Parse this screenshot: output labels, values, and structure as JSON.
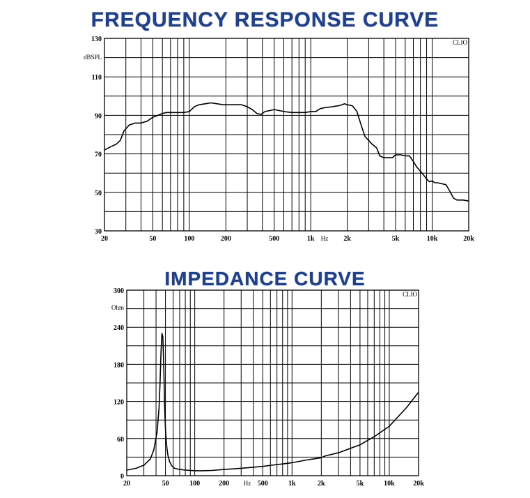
{
  "chart_data": [
    {
      "type": "line",
      "title": "FREQUENCY RESPONSE CURVE",
      "brand": "CLIO",
      "xlabel": "Hz",
      "ylabel": "dBSPL",
      "xscale": "log",
      "xlim": [
        20,
        20000
      ],
      "ylim": [
        30,
        130
      ],
      "x_tick_values": [
        20,
        50,
        100,
        200,
        500,
        1000,
        2000,
        5000,
        10000,
        20000
      ],
      "x_tick_labels": [
        "20",
        "50",
        "100",
        "200",
        "500",
        "1k",
        "2k",
        "5k",
        "10k",
        "20k"
      ],
      "y_tick_values": [
        30,
        50,
        70,
        90,
        110,
        130
      ],
      "y_tick_labels": [
        "30",
        "50",
        "70",
        "90",
        "110",
        "130"
      ],
      "grid": true,
      "series": [
        {
          "x": [
            20,
            23,
            25,
            27,
            29,
            32,
            36,
            40,
            45,
            50,
            55,
            60,
            65,
            70,
            80,
            90,
            100,
            110,
            120,
            135,
            150,
            170,
            190,
            210,
            240,
            270,
            300,
            330,
            360,
            390,
            420,
            460,
            500,
            550,
            600,
            700,
            800,
            900,
            1000,
            1100,
            1200,
            1300,
            1500,
            1700,
            1800,
            1900,
            2000,
            2200,
            2400,
            2600,
            2800,
            3000,
            3200,
            3500,
            3700,
            4000,
            4300,
            4700,
            5000,
            5500,
            6000,
            6500,
            7000,
            7500,
            8000,
            8500,
            9000,
            9500,
            10000,
            10500,
            11000,
            12000,
            13000,
            14000,
            15000,
            16000,
            18000,
            20000
          ],
          "y": [
            72,
            74,
            75,
            77,
            82,
            85,
            86,
            86,
            87,
            89,
            90,
            91,
            91.5,
            91.5,
            91.5,
            91.5,
            92,
            94.5,
            95.5,
            96,
            96.5,
            96,
            95.5,
            95.5,
            95.5,
            95.5,
            94.5,
            93,
            91,
            90.5,
            92,
            92.5,
            93,
            92.5,
            92,
            91.5,
            91.5,
            91.5,
            92,
            92,
            93.5,
            94,
            94.5,
            95,
            95.5,
            96,
            95.5,
            95,
            92,
            85,
            79,
            77,
            75,
            73,
            69,
            68,
            68,
            68,
            69.5,
            69.5,
            69,
            69,
            66,
            63,
            61,
            59,
            57,
            55.5,
            56,
            55,
            55,
            54.5,
            54,
            50.5,
            47,
            46,
            46,
            45.5
          ]
        }
      ]
    },
    {
      "type": "line",
      "title": "IMPEDANCE CURVE",
      "brand": "CLIO",
      "xlabel": "Hz",
      "ylabel": "Ohm",
      "xscale": "log",
      "xlim": [
        20,
        20000
      ],
      "ylim": [
        0,
        300
      ],
      "x_tick_values": [
        20,
        50,
        100,
        200,
        500,
        1000,
        2000,
        5000,
        10000,
        20000
      ],
      "x_tick_labels": [
        "20",
        "50",
        "100",
        "200",
        "500",
        "1k",
        "2k",
        "5k",
        "10k",
        "20k"
      ],
      "y_tick_values": [
        0,
        60,
        120,
        180,
        240,
        300
      ],
      "y_tick_labels": [
        "0",
        "60",
        "120",
        "180",
        "240",
        "300"
      ],
      "grid": true,
      "series": [
        {
          "x": [
            20,
            25,
            30,
            35,
            38,
            41,
            43,
            44,
            45,
            46,
            47,
            48,
            49,
            50,
            51,
            52,
            53,
            55,
            58,
            62,
            70,
            80,
            100,
            120,
            150,
            200,
            300,
            500,
            700,
            800,
            1000,
            1500,
            2000,
            2200,
            3000,
            5000,
            7000,
            10000,
            15000,
            20000
          ],
          "y": [
            9,
            12,
            17,
            27,
            42,
            70,
            110,
            150,
            200,
            230,
            225,
            180,
            110,
            75,
            55,
            42,
            33,
            23,
            16,
            12,
            10,
            9,
            8,
            8,
            8.5,
            10,
            12,
            15,
            18,
            19,
            21,
            26,
            29,
            32,
            37,
            50,
            63,
            80,
            110,
            135
          ]
        }
      ]
    }
  ]
}
